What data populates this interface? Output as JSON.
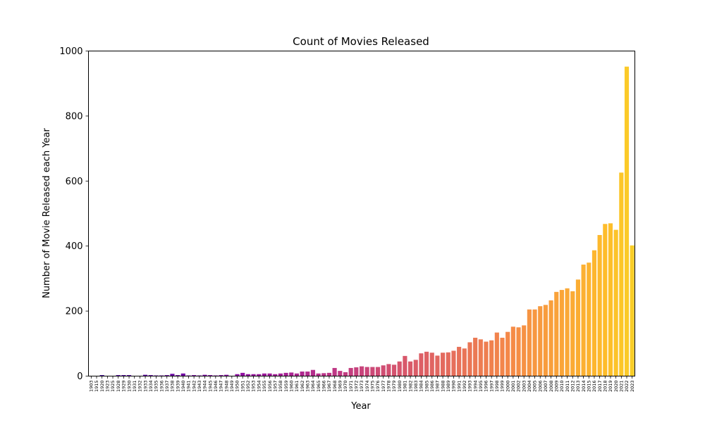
{
  "chart_data": {
    "type": "bar",
    "title": "Count of Movies Released",
    "xlabel": "Year",
    "ylabel": "Number of Movie Released each Year",
    "ylim": [
      0,
      1000
    ],
    "yticks": [
      0,
      200,
      400,
      600,
      800,
      1000
    ],
    "grid": false,
    "legend": "none",
    "colormap": "plasma",
    "categories": [
      "1903",
      "1915",
      "1920",
      "1923",
      "1925",
      "1928",
      "1929",
      "1930",
      "1931",
      "1932",
      "1933",
      "1934",
      "1935",
      "1936",
      "1937",
      "1938",
      "1939",
      "1940",
      "1941",
      "1942",
      "1943",
      "1944",
      "1945",
      "1946",
      "1947",
      "1948",
      "1949",
      "1950",
      "1951",
      "1952",
      "1953",
      "1954",
      "1955",
      "1956",
      "1957",
      "1958",
      "1959",
      "1960",
      "1961",
      "1962",
      "1963",
      "1964",
      "1965",
      "1966",
      "1967",
      "1968",
      "1969",
      "1970",
      "1971",
      "1972",
      "1973",
      "1974",
      "1975",
      "1976",
      "1977",
      "1978",
      "1979",
      "1980",
      "1981",
      "1982",
      "1983",
      "1984",
      "1985",
      "1986",
      "1987",
      "1988",
      "1989",
      "1990",
      "1991",
      "1992",
      "1993",
      "1994",
      "1995",
      "1996",
      "1997",
      "1998",
      "1999",
      "2000",
      "2001",
      "2002",
      "2003",
      "2004",
      "2005",
      "2006",
      "2007",
      "2008",
      "2009",
      "2010",
      "2011",
      "2012",
      "2013",
      "2014",
      "2015",
      "2016",
      "2017",
      "2018",
      "2019",
      "2020",
      "2021",
      "2022",
      "2023"
    ],
    "values": [
      1,
      1,
      3,
      1,
      1,
      3,
      3,
      3,
      1,
      1,
      4,
      3,
      2,
      2,
      3,
      7,
      3,
      8,
      2,
      3,
      2,
      4,
      3,
      2,
      3,
      4,
      1,
      6,
      10,
      6,
      6,
      6,
      8,
      8,
      6,
      8,
      10,
      11,
      8,
      14,
      14,
      19,
      8,
      9,
      10,
      25,
      16,
      12,
      25,
      27,
      30,
      28,
      28,
      28,
      33,
      37,
      35,
      45,
      62,
      45,
      50,
      70,
      75,
      72,
      63,
      72,
      73,
      78,
      90,
      85,
      104,
      118,
      113,
      106,
      110,
      134,
      118,
      136,
      152,
      150,
      156,
      205,
      205,
      215,
      219,
      233,
      259,
      265,
      270,
      261,
      297,
      343,
      349,
      387,
      434,
      468,
      470,
      450,
      626,
      952,
      402
    ]
  }
}
